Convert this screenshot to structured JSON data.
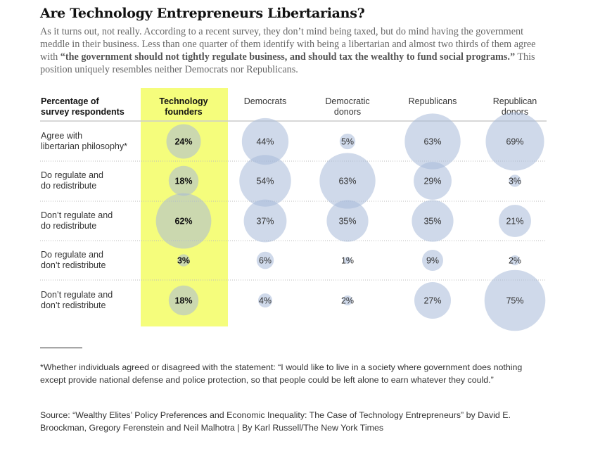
{
  "title": "Are Technology Entrepreneurs Libertarians?",
  "intro": {
    "text_before": "As it turns out, not really. According to a recent survey, they don’t mind being taxed, but do mind having the government meddle in their business. Less than one quarter of them identify with being a libertarian and almost two thirds of them agree with ",
    "bold_quote": "“the government should not tightly regulate business, and should tax the wealthy to fund social programs.”",
    "text_after": " This position uniquely resembles neither Democrats nor Republicans."
  },
  "colors": {
    "highlight": "#f5fd7c",
    "bubble": "#a7bad8",
    "bubble_opacity": 0.55
  },
  "chart_data": {
    "type": "bubble-table",
    "title": "Are Technology Entrepreneurs Libertarians?",
    "row_header": [
      "Percentage of",
      "survey respondents"
    ],
    "columns": [
      {
        "name": [
          "Technology",
          "founders"
        ],
        "highlighted": true
      },
      {
        "name": [
          "Democrats"
        ],
        "highlighted": false
      },
      {
        "name": [
          "Democratic",
          "donors"
        ],
        "highlighted": false
      },
      {
        "name": [
          "Republicans"
        ],
        "highlighted": false
      },
      {
        "name": [
          "Republican",
          "donors"
        ],
        "highlighted": false
      }
    ],
    "rows": [
      {
        "label": [
          "Agree with",
          "libertarian philosophy*"
        ],
        "values": [
          24,
          44,
          5,
          63,
          69
        ]
      },
      {
        "label": [
          "Do regulate and",
          "do redistribute"
        ],
        "values": [
          18,
          54,
          63,
          29,
          3
        ]
      },
      {
        "label": [
          "Don’t regulate and",
          "do redistribute"
        ],
        "values": [
          62,
          37,
          35,
          35,
          21
        ]
      },
      {
        "label": [
          "Do regulate and",
          "don’t redistribute"
        ],
        "values": [
          3,
          6,
          1,
          9,
          2
        ]
      },
      {
        "label": [
          "Don’t regulate and",
          "don’t redistribute"
        ],
        "values": [
          18,
          4,
          2,
          27,
          75
        ]
      }
    ],
    "value_suffix": "%",
    "encoding": "bubble area proportional to percentage"
  },
  "footnote": "*Whether individuals agreed or disagreed with the statement: “I would like to live in a society where government does nothing except provide national defense and police protection, so that people could be left alone to earn whatever they could.”",
  "source": "Source: “Wealthy Elites’ Policy Preferences and Economic Inequality: The Case of Technology Entrepreneurs” by David E. Broockman, Gregory Ferenstein and Neil Malhotra   |  By Karl Russell/The New York Times"
}
